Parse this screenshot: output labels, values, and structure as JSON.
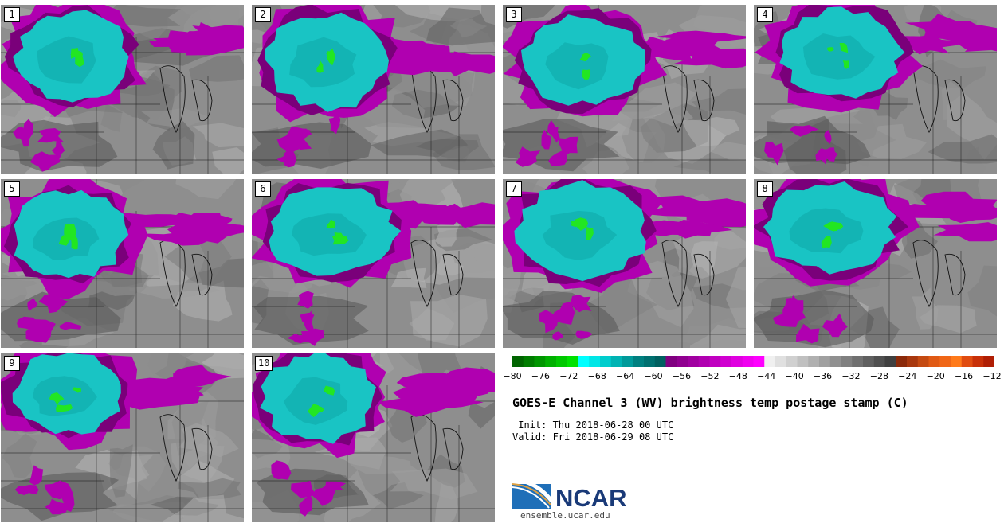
{
  "title": "GOES-E Channel 3 (WV) brightness temp postage stamp (C)",
  "init": " Init: Thu 2018-06-28 00 UTC",
  "valid": "Valid: Fri 2018-06-29 08 UTC",
  "panels": [
    "1",
    "2",
    "3",
    "4",
    "5",
    "6",
    "7",
    "8",
    "9",
    "10"
  ],
  "colorbar": {
    "ticks": [
      "−80",
      "−76",
      "−72",
      "−68",
      "−64",
      "−60",
      "−56",
      "−52",
      "−48",
      "−44",
      "−40",
      "−36",
      "−32",
      "−28",
      "−24",
      "−20",
      "−16",
      "−12"
    ],
    "colors": [
      "#006400",
      "#007d00",
      "#009600",
      "#00b000",
      "#00c800",
      "#00e100",
      "#00ffff",
      "#00e6e6",
      "#00cdcd",
      "#00b3b3",
      "#009a9a",
      "#008080",
      "#007070",
      "#006060",
      "#800080",
      "#900090",
      "#a000a0",
      "#b000b0",
      "#c000c0",
      "#d000d0",
      "#e000e0",
      "#f000f0",
      "#ff00ff",
      "#f0f0f0",
      "#e0e0e0",
      "#d0d0d0",
      "#c0c0c0",
      "#b0b0b0",
      "#a0a0a0",
      "#909090",
      "#808080",
      "#707070",
      "#606060",
      "#505050",
      "#404040",
      "#8b2a0a",
      "#a8380e",
      "#c44a12",
      "#e05a14",
      "#f06616",
      "#ff7a1a",
      "#e04c10",
      "#c83008",
      "#b01e04"
    ]
  },
  "logo": {
    "text": "NCAR",
    "url": "ensemble.ucar.edu"
  },
  "colors": {
    "cloud_core": "#19c4c4",
    "cloud_edge": "#b000b0",
    "background": "#8c8c8c"
  }
}
